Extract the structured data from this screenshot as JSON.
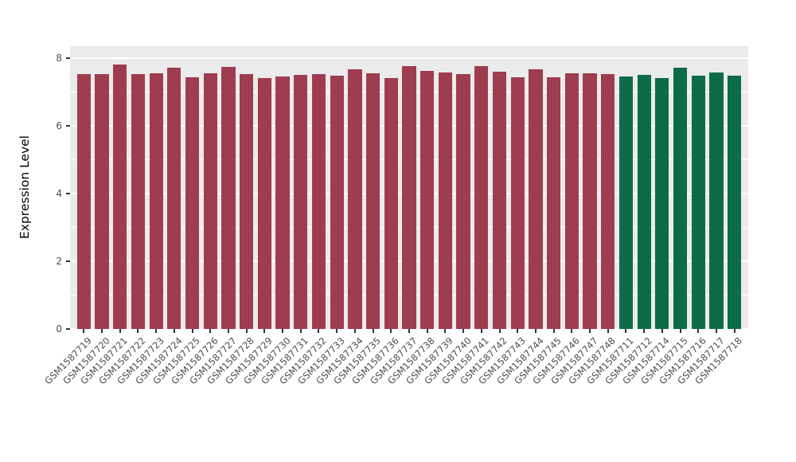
{
  "figure": {
    "background_color": "#FFFFFF",
    "panel_background_color": "#EBEBEB",
    "grid_color": "#FFFFFF",
    "tick_label_color": "#4D4D4D",
    "axis_title_color": "#000000"
  },
  "chart_data": {
    "type": "bar",
    "title": "",
    "xlabel": "",
    "ylabel": "Expression Level",
    "ylim": [
      0,
      8
    ],
    "yticks": [
      0,
      2,
      4,
      6,
      8
    ],
    "minor_yticks": [
      1,
      3,
      5,
      7
    ],
    "grid": true,
    "legend": "none",
    "categories": [
      "GSM1587719",
      "GSM1587720",
      "GSM1587721",
      "GSM1587722",
      "GSM1587723",
      "GSM1587724",
      "GSM1587725",
      "GSM1587726",
      "GSM1587727",
      "GSM1587728",
      "GSM1587729",
      "GSM1587730",
      "GSM1587731",
      "GSM1587732",
      "GSM1587733",
      "GSM1587734",
      "GSM1587735",
      "GSM1587736",
      "GSM1587737",
      "GSM1587738",
      "GSM1587739",
      "GSM1587740",
      "GSM1587741",
      "GSM1587742",
      "GSM1587743",
      "GSM1587744",
      "GSM1587745",
      "GSM1587746",
      "GSM1587747",
      "GSM1587748",
      "GSM1587711",
      "GSM1587712",
      "GSM1587714",
      "GSM1587715",
      "GSM1587716",
      "GSM1587717",
      "GSM1587718"
    ],
    "values": [
      7.52,
      7.52,
      7.8,
      7.53,
      7.55,
      7.72,
      7.43,
      7.55,
      7.74,
      7.53,
      7.42,
      7.47,
      7.5,
      7.52,
      7.48,
      7.66,
      7.55,
      7.4,
      7.76,
      7.62,
      7.57,
      7.52,
      7.77,
      7.6,
      7.43,
      7.66,
      7.43,
      7.55,
      7.55,
      7.52,
      7.46,
      7.5,
      7.4,
      7.72,
      7.48,
      7.57,
      7.48
    ],
    "colors": [
      "#9E3D50",
      "#9E3D50",
      "#9E3D50",
      "#9E3D50",
      "#9E3D50",
      "#9E3D50",
      "#9E3D50",
      "#9E3D50",
      "#9E3D50",
      "#9E3D50",
      "#9E3D50",
      "#9E3D50",
      "#9E3D50",
      "#9E3D50",
      "#9E3D50",
      "#9E3D50",
      "#9E3D50",
      "#9E3D50",
      "#9E3D50",
      "#9E3D50",
      "#9E3D50",
      "#9E3D50",
      "#9E3D50",
      "#9E3D50",
      "#9E3D50",
      "#9E3D50",
      "#9E3D50",
      "#9E3D50",
      "#9E3D50",
      "#9E3D50",
      "#0E6B48",
      "#0E6B48",
      "#0E6B48",
      "#0E6B48",
      "#0E6B48",
      "#0E6B48",
      "#0E6B48"
    ],
    "group_colors": {
      "group_1_maroon": "#9E3D50",
      "group_2_green": "#0E6B48"
    }
  }
}
